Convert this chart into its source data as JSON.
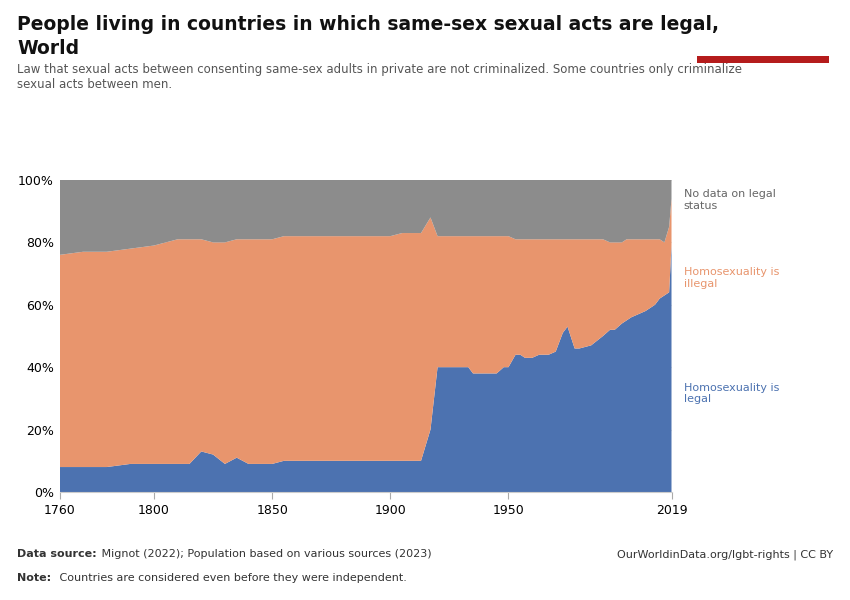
{
  "title_line1": "People living in countries in which same-sex sexual acts are legal,",
  "title_line2": "World",
  "subtitle": "Law that sexual acts between consenting same-sex adults in private are not criminalized. Some countries only criminalize\nsexual acts between men.",
  "datasource_bold": "Data source:",
  "datasource_rest": " Mignot (2022); Population based on various sources (2023)",
  "url": "OurWorldinData.org/lgbt-rights | CC BY",
  "note_bold": "Note:",
  "note_rest": " Countries are considered even before they were independent.",
  "xlim": [
    1760,
    2019
  ],
  "ylim": [
    0,
    100
  ],
  "yticks": [
    0,
    20,
    40,
    60,
    80,
    100
  ],
  "xticks": [
    1760,
    1800,
    1850,
    1900,
    1950,
    2019
  ],
  "color_legal": "#4C72B0",
  "color_illegal": "#E8956D",
  "color_nodata": "#8C8C8C",
  "label_legal": "Homosexuality is\nlegal",
  "label_illegal": "Homosexuality is\nillegal",
  "label_nodata": "No data on legal\nstatus",
  "owid_bg": "#1a3a5c",
  "owid_red": "#b51c1c",
  "years": [
    1760,
    1770,
    1780,
    1790,
    1800,
    1810,
    1815,
    1820,
    1825,
    1830,
    1835,
    1840,
    1845,
    1850,
    1855,
    1860,
    1865,
    1870,
    1875,
    1880,
    1885,
    1890,
    1895,
    1900,
    1905,
    1910,
    1913,
    1917,
    1920,
    1925,
    1930,
    1933,
    1935,
    1938,
    1940,
    1945,
    1948,
    1950,
    1953,
    1955,
    1957,
    1960,
    1963,
    1965,
    1967,
    1970,
    1973,
    1975,
    1978,
    1980,
    1985,
    1990,
    1993,
    1995,
    1998,
    2000,
    2002,
    2005,
    2008,
    2010,
    2012,
    2014,
    2016,
    2018,
    2019
  ],
  "legal_pct": [
    8,
    8,
    8,
    9,
    9,
    9,
    9,
    13,
    12,
    9,
    11,
    9,
    9,
    9,
    10,
    10,
    10,
    10,
    10,
    10,
    10,
    10,
    10,
    10,
    10,
    10,
    10,
    20,
    40,
    40,
    40,
    40,
    38,
    38,
    38,
    38,
    40,
    40,
    44,
    44,
    43,
    43,
    44,
    44,
    44,
    45,
    51,
    53,
    46,
    46,
    47,
    50,
    52,
    52,
    54,
    55,
    56,
    57,
    58,
    59,
    60,
    62,
    63,
    64,
    79
  ],
  "illegal_pct": [
    68,
    69,
    69,
    69,
    70,
    72,
    72,
    68,
    68,
    71,
    70,
    72,
    72,
    72,
    72,
    72,
    72,
    72,
    72,
    72,
    72,
    72,
    72,
    72,
    73,
    73,
    73,
    68,
    42,
    42,
    42,
    42,
    44,
    44,
    44,
    44,
    42,
    42,
    37,
    37,
    38,
    38,
    37,
    37,
    37,
    36,
    30,
    28,
    35,
    35,
    34,
    31,
    28,
    28,
    26,
    26,
    25,
    24,
    23,
    22,
    21,
    19,
    17,
    21,
    15
  ],
  "nodata_pct": [
    24,
    23,
    23,
    22,
    21,
    19,
    19,
    19,
    20,
    20,
    19,
    19,
    19,
    19,
    18,
    18,
    18,
    18,
    18,
    18,
    18,
    18,
    18,
    18,
    17,
    17,
    17,
    12,
    18,
    18,
    18,
    18,
    18,
    18,
    18,
    18,
    18,
    18,
    19,
    19,
    19,
    19,
    19,
    19,
    19,
    19,
    19,
    19,
    19,
    19,
    19,
    19,
    20,
    20,
    20,
    19,
    19,
    19,
    19,
    19,
    19,
    19,
    20,
    15,
    6
  ]
}
